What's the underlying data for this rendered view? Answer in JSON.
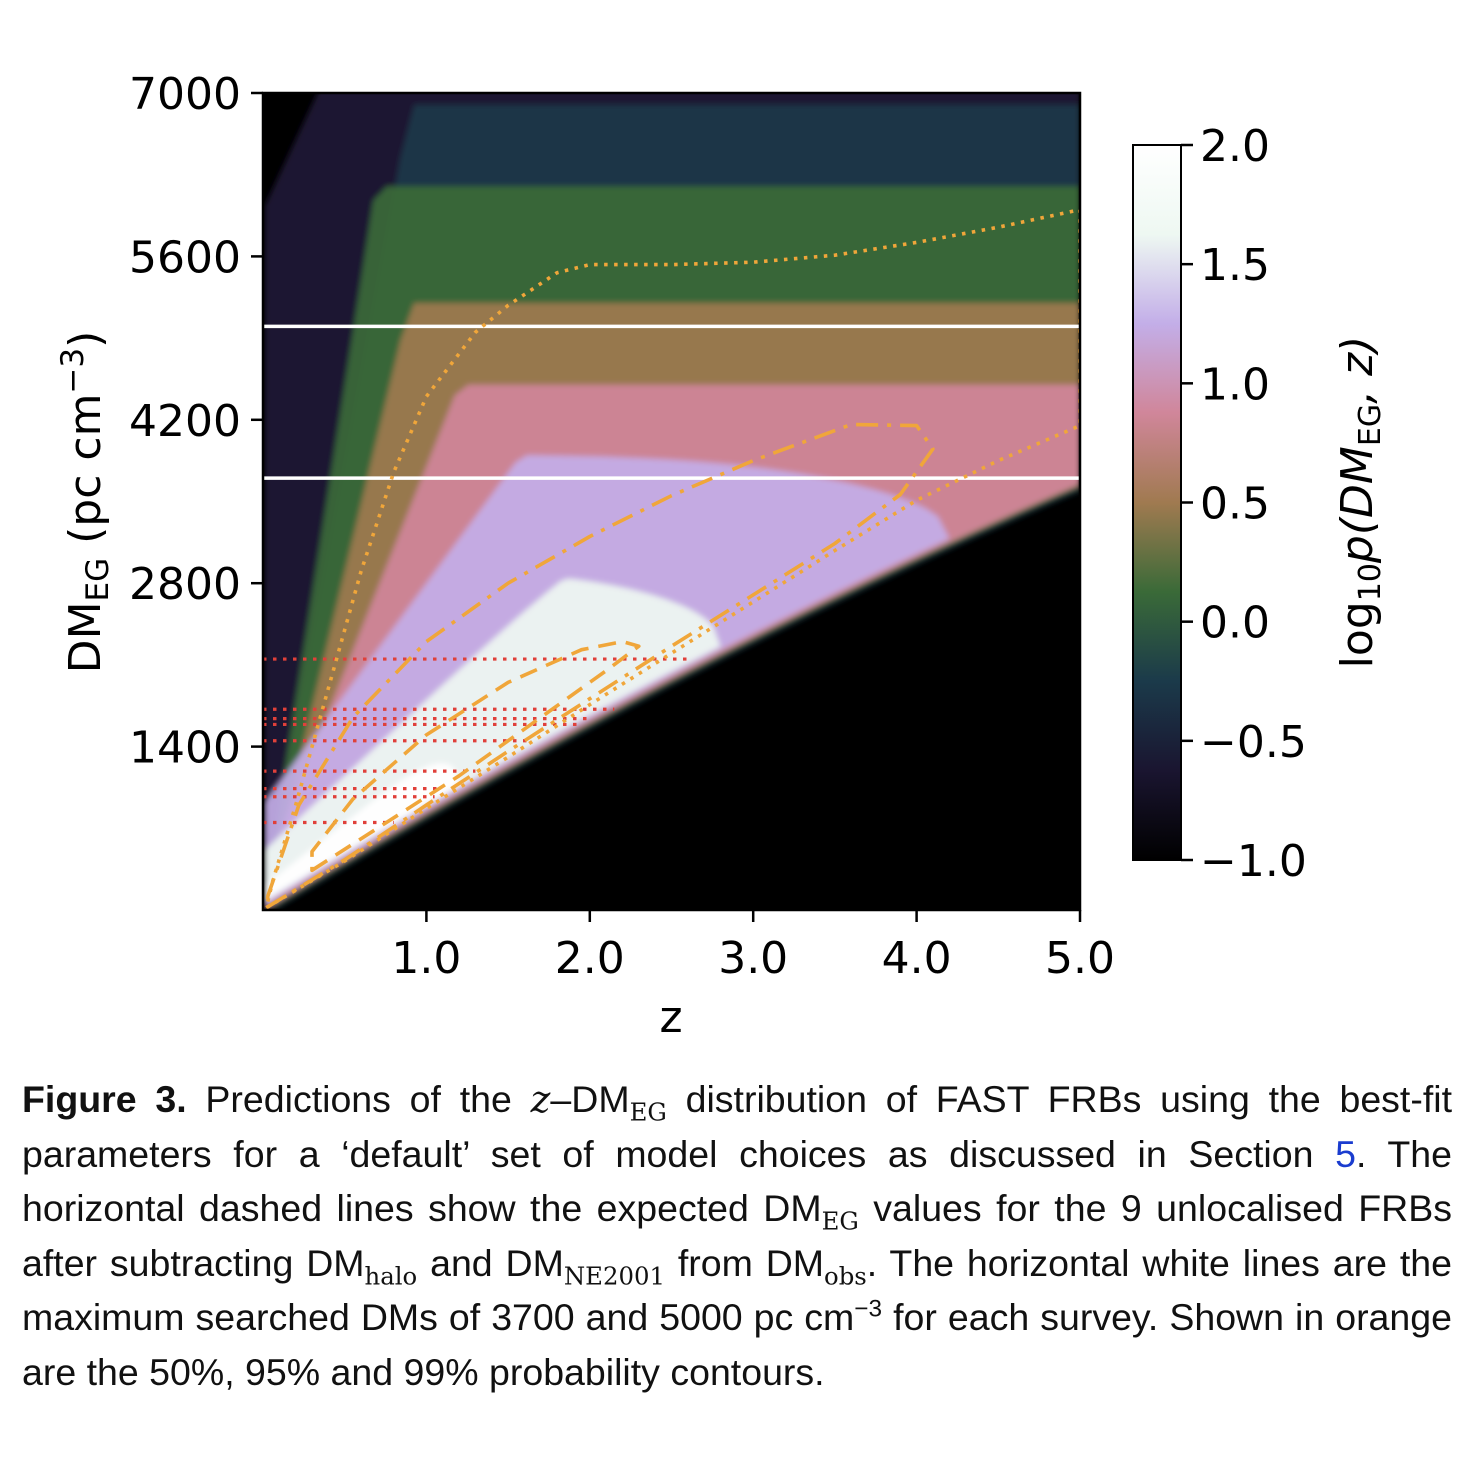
{
  "chart_data": {
    "type": "heatmap",
    "xlabel": "z",
    "ylabel_main": "DM",
    "ylabel_sub": "EG",
    "ylabel_unit_open": " (pc cm",
    "ylabel_unit_sup": "−3",
    "ylabel_unit_close": ")",
    "xlim": [
      0,
      5.0
    ],
    "ylim": [
      0,
      7000
    ],
    "xticks": [
      1.0,
      2.0,
      3.0,
      4.0,
      5.0
    ],
    "xtick_labels": [
      "1.0",
      "2.0",
      "3.0",
      "4.0",
      "5.0"
    ],
    "yticks": [
      1400,
      2800,
      4200,
      5600,
      7000
    ],
    "ytick_labels": [
      "1400",
      "2800",
      "4200",
      "5600",
      "7000"
    ],
    "colorbar": {
      "range": [
        -1.0,
        2.0
      ],
      "ticks": [
        -1.0,
        -0.5,
        0.0,
        0.5,
        1.0,
        1.5,
        2.0
      ],
      "tick_labels": [
        "−1.0",
        "−0.5",
        "0.0",
        "0.5",
        "1.0",
        "1.5",
        "2.0"
      ],
      "label_prefix": "log",
      "label_sub": "10",
      "label_p": "p",
      "label_open": "(",
      "label_dm": "DM",
      "label_dm_sub": "EG",
      "label_z": ", z)",
      "colormap": "cubehelix",
      "stops": [
        "#000000",
        "#1a1530",
        "#1b3a4a",
        "#3a6a38",
        "#a07a50",
        "#d0869a",
        "#c3aee8",
        "#eef8f2",
        "#ffffff"
      ]
    },
    "white_lines_dm": [
      3700,
      5000
    ],
    "white_line_color": "#ffffff",
    "frb_dm_lines": [
      {
        "dm": 2150,
        "z_end": 2.6
      },
      {
        "dm": 1720,
        "z_end": 2.15
      },
      {
        "dm": 1640,
        "z_end": 2.0
      },
      {
        "dm": 1590,
        "z_end": 1.95
      },
      {
        "dm": 1450,
        "z_end": 1.65
      },
      {
        "dm": 1190,
        "z_end": 1.3
      },
      {
        "dm": 1040,
        "z_end": 1.1
      },
      {
        "dm": 970,
        "z_end": 1.05
      },
      {
        "dm": 750,
        "z_end": 0.8
      }
    ],
    "frb_line_color": "#e0403a",
    "contour_color": "#f0a63a",
    "contours": [
      {
        "level": "50%",
        "style": "dashed",
        "points": [
          [
            0.3,
            340
          ],
          [
            0.7,
            700
          ],
          [
            1.2,
            1150
          ],
          [
            1.7,
            1650
          ],
          [
            2.1,
            2050
          ],
          [
            2.3,
            2260
          ],
          [
            2.2,
            2300
          ],
          [
            1.95,
            2230
          ],
          [
            1.5,
            1950
          ],
          [
            1.0,
            1500
          ],
          [
            0.55,
            950
          ],
          [
            0.3,
            500
          ]
        ]
      },
      {
        "level": "95%",
        "style": "dashdot",
        "points": [
          [
            0.02,
            20
          ],
          [
            0.5,
            430
          ],
          [
            1.0,
            900
          ],
          [
            1.5,
            1360
          ],
          [
            2.0,
            1810
          ],
          [
            2.5,
            2260
          ],
          [
            3.0,
            2700
          ],
          [
            3.5,
            3140
          ],
          [
            3.9,
            3560
          ],
          [
            4.1,
            3950
          ],
          [
            4.0,
            4150
          ],
          [
            3.6,
            4160
          ],
          [
            3.0,
            3850
          ],
          [
            2.5,
            3550
          ],
          [
            2.0,
            3200
          ],
          [
            1.5,
            2800
          ],
          [
            1.0,
            2300
          ],
          [
            0.55,
            1650
          ],
          [
            0.22,
            900
          ],
          [
            0.03,
            120
          ]
        ]
      },
      {
        "level": "99%",
        "style": "dotted",
        "points": [
          [
            0.02,
            20
          ],
          [
            0.5,
            420
          ],
          [
            1.0,
            870
          ],
          [
            1.5,
            1310
          ],
          [
            2.0,
            1760
          ],
          [
            2.5,
            2200
          ],
          [
            3.0,
            2640
          ],
          [
            3.5,
            3080
          ],
          [
            4.0,
            3510
          ],
          [
            4.5,
            3850
          ],
          [
            5.0,
            4150
          ],
          [
            5.0,
            6000
          ],
          [
            4.5,
            5850
          ],
          [
            4.0,
            5720
          ],
          [
            3.5,
            5610
          ],
          [
            3.0,
            5550
          ],
          [
            2.5,
            5530
          ],
          [
            2.0,
            5530
          ],
          [
            1.8,
            5460
          ],
          [
            1.5,
            5180
          ],
          [
            1.3,
            4950
          ],
          [
            1.0,
            4400
          ],
          [
            0.8,
            3750
          ],
          [
            0.6,
            2900
          ],
          [
            0.4,
            1900
          ],
          [
            0.2,
            900
          ],
          [
            0.06,
            250
          ]
        ]
      }
    ]
  },
  "caption": {
    "figure_label": "Figure 3.",
    "t1": " Predictions of the ",
    "z": "z",
    "t2": "–DM",
    "eg1": "EG",
    "t3": " distribution of FAST FRBs using the best-fit parameters for a ‘default’ set of model choices as discussed in Section ",
    "section_ref": "5",
    "t4": ". The horizontal dashed lines show the expected DM",
    "eg2": "EG",
    "t5": " values for the 9 unlocalised FRBs after subtracting DM",
    "halo": "halo",
    "t6": " and DM",
    "ne2001": "NE2001",
    "t7": " from DM",
    "obs": "obs",
    "t8": ". The horizontal white lines are the maximum searched DMs of 3700 and 5000 pc cm",
    "minus3": "−3",
    "t9": " for each survey.  Shown in orange are the 50%, 95% and 99% probability contours."
  }
}
